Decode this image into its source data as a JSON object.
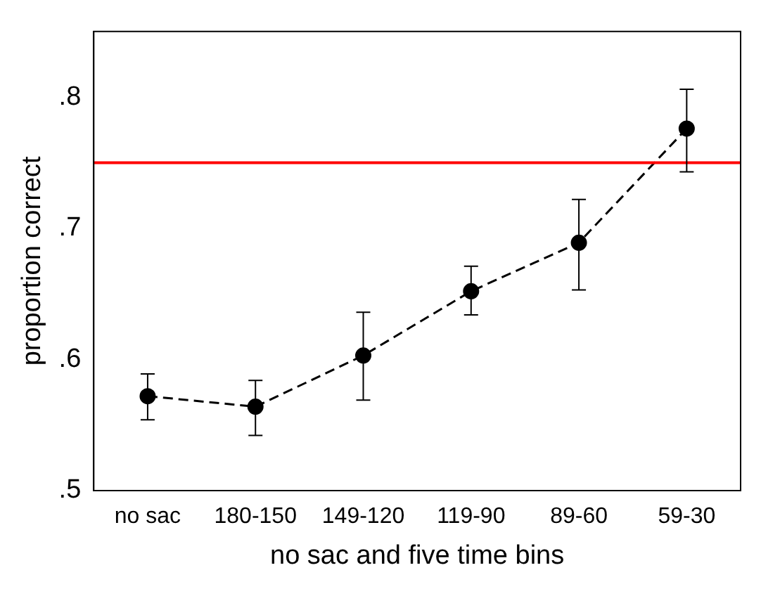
{
  "chart_data": {
    "type": "line",
    "xlabel": "no sac and five time bins",
    "ylabel": "proportion correct",
    "categories": [
      "no sac",
      "180-150",
      "149-120",
      "119-90",
      "89-60",
      "59-30"
    ],
    "series": [
      {
        "color": "#000000",
        "values": [
          0.572,
          0.564,
          0.603,
          0.652,
          0.689,
          0.776
        ],
        "errors": [
          [
            0.554,
            0.589
          ],
          [
            0.542,
            0.584
          ],
          [
            0.569,
            0.636
          ],
          [
            0.634,
            0.671
          ],
          [
            0.653,
            0.722
          ],
          [
            0.743,
            0.806
          ]
        ]
      }
    ],
    "ylim": [
      0.5,
      0.85
    ],
    "yticks": [
      {
        "value": 0.5,
        "label": ".5"
      },
      {
        "value": 0.6,
        "label": ".6"
      },
      {
        "value": 0.7,
        "label": ".7"
      },
      {
        "value": 0.8,
        "label": ".8"
      }
    ],
    "ref_lines": [
      {
        "axis": "y",
        "value": 0.75,
        "color": "#ff0000"
      }
    ],
    "marker": "circle",
    "line_style": "dashed",
    "grid": false,
    "legend": false
  }
}
